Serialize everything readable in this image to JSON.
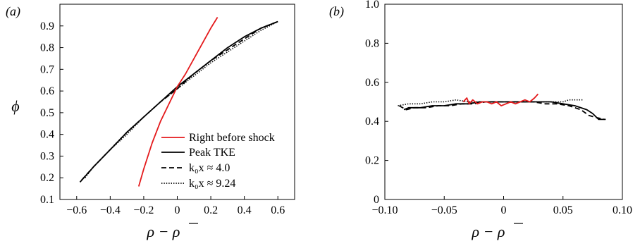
{
  "chart_data": [
    {
      "panel": "(a)",
      "type": "line",
      "xlabel": "ρ − ρ̄",
      "ylabel": "ϕ",
      "xlim": [
        -0.7,
        0.7
      ],
      "ylim": [
        0.1,
        1.0
      ],
      "xticks": [
        -0.6,
        -0.4,
        -0.2,
        0,
        0.2,
        0.4,
        0.6
      ],
      "xtick_labels": [
        "−0.6",
        "−0.4",
        "−0.2",
        "0",
        "0.2",
        "0.4",
        "0.6"
      ],
      "yticks": [
        0.1,
        0.2,
        0.3,
        0.4,
        0.5,
        0.6,
        0.7,
        0.8,
        0.9
      ],
      "ytick_labels": [
        "0.1",
        "0.2",
        "0.3",
        "0.4",
        "0.5",
        "0.6",
        "0.7",
        "0.8",
        "0.9"
      ],
      "legend_position": "bottom-right",
      "series": [
        {
          "name": "Right before shock",
          "color": "#e41a1c",
          "style": "solid",
          "x": [
            -0.23,
            -0.2,
            -0.15,
            -0.1,
            -0.05,
            0,
            0.05,
            0.1,
            0.15,
            0.2,
            0.24
          ],
          "y": [
            0.16,
            0.24,
            0.36,
            0.46,
            0.54,
            0.62,
            0.68,
            0.75,
            0.82,
            0.89,
            0.94
          ]
        },
        {
          "name": "Peak TKE",
          "color": "#000000",
          "style": "solid",
          "x": [
            -0.58,
            -0.5,
            -0.4,
            -0.3,
            -0.2,
            -0.1,
            0,
            0.1,
            0.2,
            0.3,
            0.4,
            0.5,
            0.6
          ],
          "y": [
            0.18,
            0.25,
            0.33,
            0.41,
            0.48,
            0.55,
            0.62,
            0.68,
            0.74,
            0.8,
            0.85,
            0.89,
            0.92
          ]
        },
        {
          "name": "k₀x ≈ 4.0",
          "color": "#000000",
          "style": "dashed",
          "x": [
            -0.57,
            -0.5,
            -0.4,
            -0.3,
            -0.2,
            -0.1,
            0,
            0.1,
            0.2,
            0.3,
            0.4,
            0.5,
            0.6
          ],
          "y": [
            0.19,
            0.25,
            0.33,
            0.41,
            0.48,
            0.55,
            0.61,
            0.68,
            0.74,
            0.79,
            0.84,
            0.89,
            0.92
          ]
        },
        {
          "name": "k₀x ≈ 9.24",
          "color": "#000000",
          "style": "dotted",
          "x": [
            -0.55,
            -0.5,
            -0.4,
            -0.3,
            -0.2,
            -0.1,
            0,
            0.1,
            0.2,
            0.3,
            0.4,
            0.5,
            0.6
          ],
          "y": [
            0.2,
            0.25,
            0.33,
            0.4,
            0.48,
            0.55,
            0.61,
            0.67,
            0.73,
            0.78,
            0.83,
            0.88,
            0.92
          ]
        }
      ]
    },
    {
      "panel": "(b)",
      "type": "line",
      "xlabel": "ρ − ρ̄",
      "ylabel": "",
      "xlim": [
        -0.1,
        0.1
      ],
      "ylim": [
        0,
        1.0
      ],
      "xticks": [
        -0.1,
        -0.05,
        0,
        0.05,
        0.1
      ],
      "xtick_labels": [
        "−0.10",
        "−0.05",
        "0",
        "0.05",
        "0.10"
      ],
      "yticks": [
        0,
        0.2,
        0.4,
        0.6,
        0.8,
        1.0
      ],
      "ytick_labels": [
        "0",
        "0.2",
        "0.4",
        "0.6",
        "0.8",
        "1.0"
      ],
      "series": [
        {
          "name": "Right before shock",
          "color": "#e41a1c",
          "style": "solid",
          "x": [
            -0.034,
            -0.031,
            -0.029,
            -0.026,
            -0.022,
            -0.018,
            -0.014,
            -0.01,
            -0.006,
            -0.002,
            0.002,
            0.006,
            0.01,
            0.014,
            0.018,
            0.022,
            0.026,
            0.029
          ],
          "y": [
            0.5,
            0.52,
            0.49,
            0.51,
            0.49,
            0.5,
            0.5,
            0.49,
            0.5,
            0.48,
            0.49,
            0.5,
            0.49,
            0.5,
            0.51,
            0.5,
            0.52,
            0.54
          ]
        },
        {
          "name": "Peak TKE",
          "color": "#000000",
          "style": "solid",
          "x": [
            -0.084,
            -0.08,
            -0.07,
            -0.06,
            -0.05,
            -0.04,
            -0.03,
            -0.02,
            -0.01,
            0,
            0.01,
            0.02,
            0.03,
            0.04,
            0.05,
            0.06,
            0.07,
            0.075,
            0.08,
            0.086
          ],
          "y": [
            0.46,
            0.47,
            0.47,
            0.48,
            0.48,
            0.49,
            0.49,
            0.5,
            0.5,
            0.5,
            0.5,
            0.5,
            0.5,
            0.5,
            0.49,
            0.48,
            0.46,
            0.44,
            0.41,
            0.41
          ]
        },
        {
          "name": "k₀x ≈ 4.0",
          "color": "#000000",
          "style": "dashed",
          "x": [
            -0.088,
            -0.082,
            -0.075,
            -0.065,
            -0.055,
            -0.045,
            -0.035,
            -0.025,
            -0.015,
            -0.005,
            0.005,
            0.015,
            0.025,
            0.035,
            0.045,
            0.055,
            0.065,
            0.072,
            0.078,
            0.085
          ],
          "y": [
            0.48,
            0.46,
            0.47,
            0.47,
            0.48,
            0.48,
            0.49,
            0.49,
            0.5,
            0.5,
            0.5,
            0.5,
            0.5,
            0.49,
            0.49,
            0.48,
            0.46,
            0.43,
            0.42,
            0.41
          ]
        },
        {
          "name": "k₀x ≈ 9.24",
          "color": "#000000",
          "style": "dotted",
          "x": [
            -0.089,
            -0.08,
            -0.07,
            -0.06,
            -0.05,
            -0.04,
            -0.03,
            -0.02,
            -0.01,
            0,
            0.01,
            0.02,
            0.03,
            0.04,
            0.05,
            0.055,
            0.06,
            0.067
          ],
          "y": [
            0.48,
            0.49,
            0.49,
            0.5,
            0.5,
            0.51,
            0.5,
            0.5,
            0.5,
            0.5,
            0.5,
            0.5,
            0.5,
            0.5,
            0.5,
            0.51,
            0.51,
            0.51
          ]
        }
      ]
    }
  ]
}
